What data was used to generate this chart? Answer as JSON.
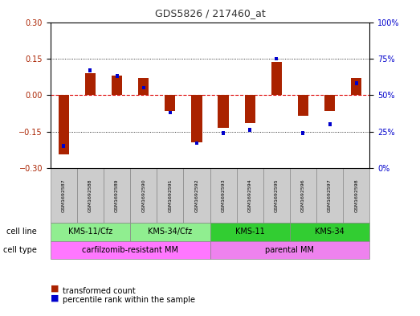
{
  "title": "GDS5826 / 217460_at",
  "samples": [
    "GSM1692587",
    "GSM1692588",
    "GSM1692589",
    "GSM1692590",
    "GSM1692591",
    "GSM1692592",
    "GSM1692593",
    "GSM1692594",
    "GSM1692595",
    "GSM1692596",
    "GSM1692597",
    "GSM1692598"
  ],
  "transformed_count": [
    -0.245,
    0.09,
    0.08,
    0.07,
    -0.065,
    -0.195,
    -0.135,
    -0.115,
    0.135,
    -0.085,
    -0.065,
    0.07
  ],
  "percentile_rank": [
    15,
    67,
    63,
    55,
    38,
    17,
    24,
    26,
    75,
    24,
    30,
    58
  ],
  "cell_line_groups": [
    {
      "label": "KMS-11/Cfz",
      "start": 0,
      "end": 2,
      "color": "#90EE90"
    },
    {
      "label": "KMS-34/Cfz",
      "start": 3,
      "end": 5,
      "color": "#90EE90"
    },
    {
      "label": "KMS-11",
      "start": 6,
      "end": 8,
      "color": "#32CD32"
    },
    {
      "label": "KMS-34",
      "start": 9,
      "end": 11,
      "color": "#32CD32"
    }
  ],
  "cell_type_groups": [
    {
      "label": "carfilzomib-resistant MM",
      "start": 0,
      "end": 5,
      "color": "#FF77FF"
    },
    {
      "label": "parental MM",
      "start": 6,
      "end": 11,
      "color": "#EE82EE"
    }
  ],
  "ylim": [
    -0.3,
    0.3
  ],
  "yticks_left": [
    -0.3,
    -0.15,
    0,
    0.15,
    0.3
  ],
  "yticks_right": [
    0,
    25,
    50,
    75,
    100
  ],
  "bar_color": "#AA2200",
  "dot_color": "#0000CC",
  "legend_bar_label": "transformed count",
  "legend_dot_label": "percentile rank within the sample",
  "cell_line_label": "cell line",
  "cell_type_label": "cell type",
  "bg_color": "#FFFFFF",
  "plot_bg_color": "#FFFFFF",
  "grid_color": "#000000",
  "zero_line_color": "#DD0000",
  "sample_bg_color": "#CCCCCC"
}
